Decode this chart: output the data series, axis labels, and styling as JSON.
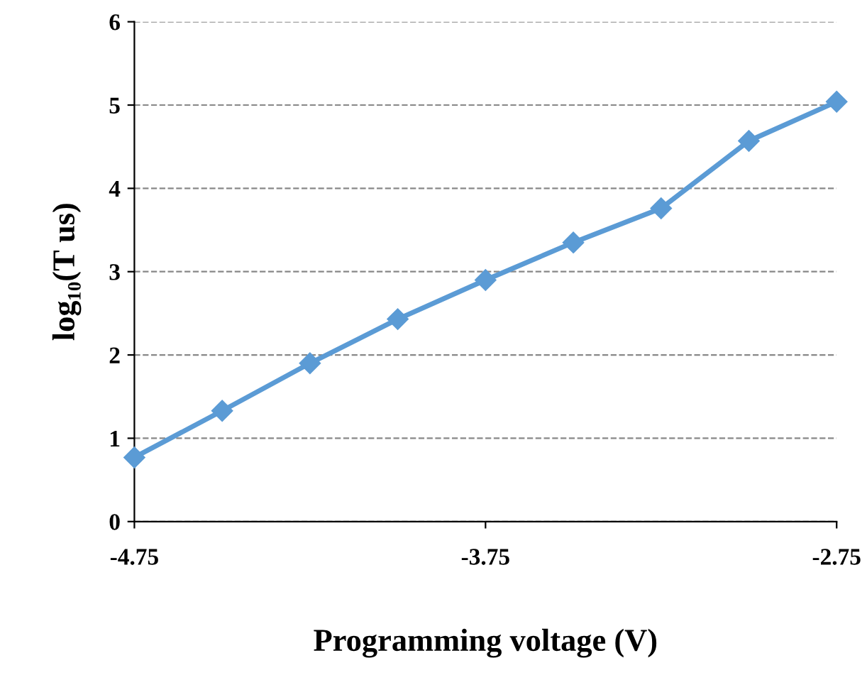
{
  "chart_data": {
    "type": "line",
    "xlabel": "Programming voltage (V)",
    "ylabel": "log₁₀(T us)",
    "x": [
      -4.75,
      -4.5,
      -4.25,
      -4.0,
      -3.75,
      -3.5,
      -3.25,
      -3.0,
      -2.75
    ],
    "series": [
      {
        "color": "#5b9bd5",
        "values": [
          0.77,
          1.33,
          1.9,
          2.43,
          2.9,
          3.35,
          3.76,
          4.57,
          5.04
        ]
      }
    ],
    "xlim": [
      -4.75,
      -2.75
    ],
    "xticks": [
      -4.75,
      -3.75,
      -2.75
    ],
    "ylim": [
      0,
      6
    ],
    "yticks": [
      0,
      1,
      2,
      3,
      4,
      5,
      6
    ],
    "grid": "y",
    "marker": "diamond",
    "line_style": "solid"
  }
}
